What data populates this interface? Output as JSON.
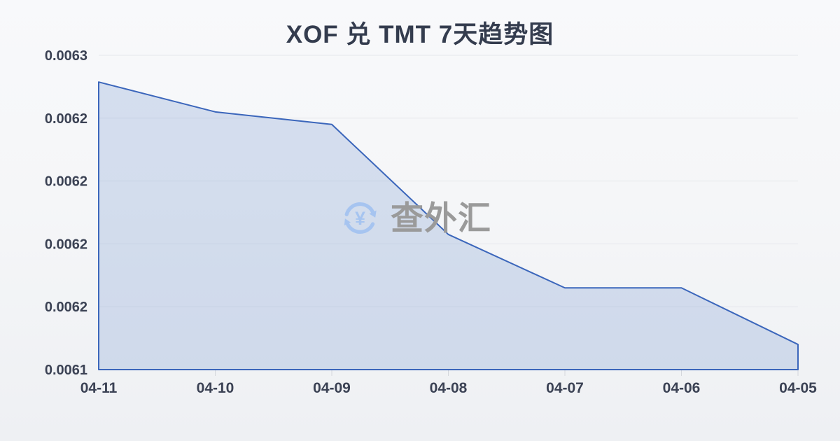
{
  "chart_data": {
    "type": "area",
    "title": "XOF 兑 TMT 7天趋势图",
    "categories": [
      "04-11",
      "04-10",
      "04-09",
      "04-08",
      "04-07",
      "04-06",
      "04-05"
    ],
    "values": [
      0.006283,
      0.006264,
      0.006256,
      0.006186,
      0.006152,
      0.006152,
      0.006116
    ],
    "ylim": [
      0.0061,
      0.0063
    ],
    "y_tick_labels": [
      "0.0063",
      "0.0062",
      "0.0062",
      "0.0062",
      "0.0062",
      "0.0061"
    ],
    "grid": true,
    "legend": false,
    "line_color": "#3b66bb",
    "fill_color": "rgba(92, 130, 202, 0.22)",
    "grid_color": "#e6e8ec",
    "tick_color": "#d4d7dc",
    "label_color": "#3b4254"
  },
  "watermark": {
    "icon": "currency-refresh-icon",
    "icon_symbol": "¥",
    "text": "查外汇"
  }
}
